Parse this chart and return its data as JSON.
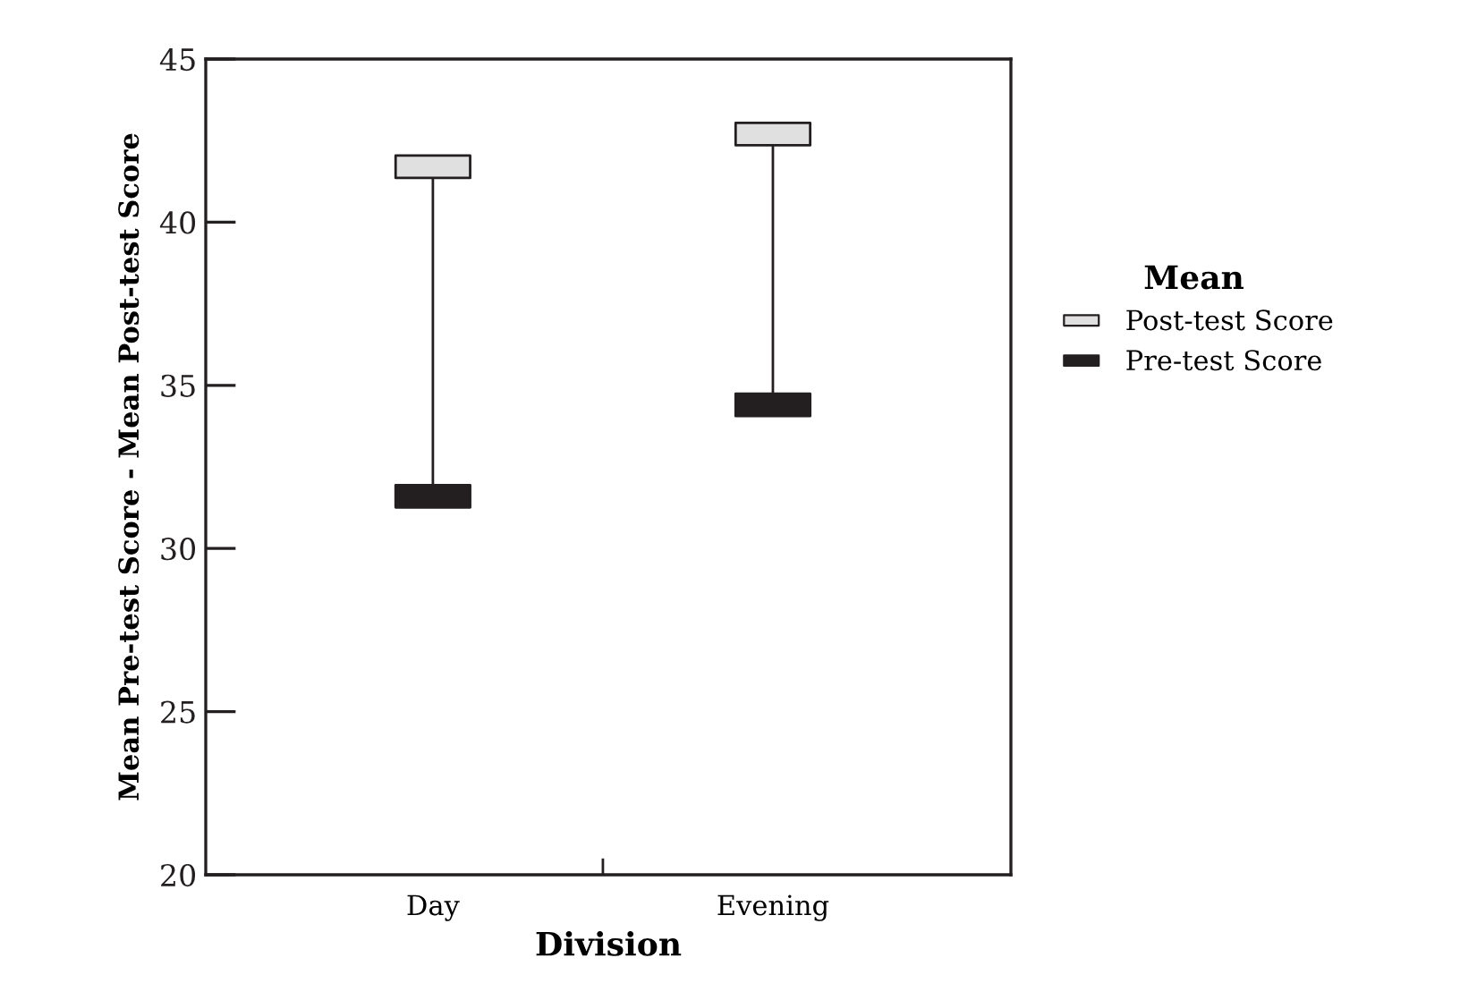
{
  "chart_data": {
    "type": "scatter",
    "xlabel": "Division",
    "ylabel": "Mean Pre-test Score - Mean Post-test Score",
    "legend_title": "Mean",
    "categories": [
      "Day",
      "Evening"
    ],
    "series": [
      {
        "name": "Post-test Score",
        "color": "#e0e0e0",
        "values": [
          41.7,
          42.7
        ]
      },
      {
        "name": "Pre-test Score",
        "color": "#231f20",
        "values": [
          31.6,
          34.4
        ]
      }
    ],
    "ylim": [
      20,
      45
    ],
    "yticks": [
      20,
      25,
      30,
      35,
      40,
      45
    ],
    "grid": false,
    "legend": "right",
    "marker": "square"
  }
}
